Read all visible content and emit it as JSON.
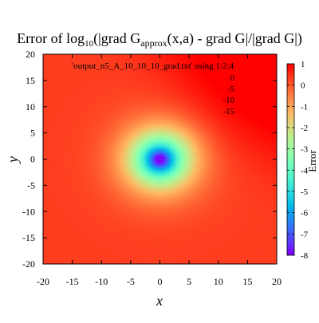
{
  "chart_data": {
    "type": "heatmap",
    "title": {
      "prefix": "Error of log",
      "sub": "10",
      "mid": "(|grad G",
      "sub2": "approx",
      "suffix": "(x,a) - grad G|/|grad G|)"
    },
    "xlabel": "x",
    "ylabel": "y",
    "xlim": [
      -20,
      20
    ],
    "ylim": [
      -20,
      20
    ],
    "xticks": [
      "-20",
      "-15",
      "-10",
      "-5",
      "0",
      "5",
      "10",
      "15",
      "20"
    ],
    "yticks": [
      "20",
      "15",
      "10",
      "5",
      "0",
      "-5",
      "-10",
      "-15",
      "-20"
    ],
    "x_tick_values": [
      -20,
      -15,
      -10,
      -5,
      0,
      5,
      10,
      15,
      20
    ],
    "y_tick_values": [
      20,
      15,
      10,
      5,
      0,
      -5,
      -10,
      -15,
      -20
    ],
    "source_label": "'output_n5_A_10_10_10_grad.txt' using 1:2:4",
    "contour_labels": [
      "0",
      "-5",
      "-10",
      "-15"
    ],
    "colorbar": {
      "label": "Error",
      "range": [
        -8,
        1
      ],
      "ticks": [
        "1",
        "0",
        "-1",
        "-2",
        "-3",
        "-4",
        "-5",
        "-6",
        "-7",
        "-8"
      ],
      "tick_values": [
        1,
        0,
        -1,
        -2,
        -3,
        -4,
        -5,
        -6,
        -7,
        -8
      ],
      "palette": "rainbow"
    },
    "field": {
      "description_values": {
        "center_min": -8,
        "center_xy": [
          0,
          0
        ],
        "far_field": 0.3,
        "upper_right_max": 1
      }
    }
  }
}
